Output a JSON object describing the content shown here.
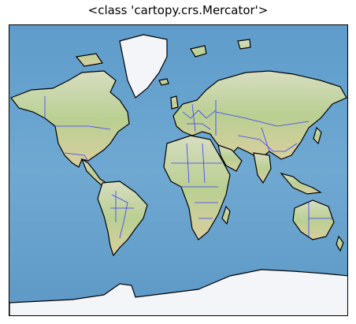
{
  "title": "<class 'cartopy.crs.Mercator'>",
  "map": {
    "projection": "Mercator",
    "colors": {
      "ocean": "#6da7cf",
      "ocean_deep": "#4f8ec0",
      "land": "#c9d8a6",
      "land_dry": "#ddd3ad",
      "ice": "#f3f5f8",
      "coastline": "#000000",
      "borders": "#3b3bff"
    },
    "layers": [
      "stock-image",
      "coastlines",
      "country-borders"
    ]
  }
}
